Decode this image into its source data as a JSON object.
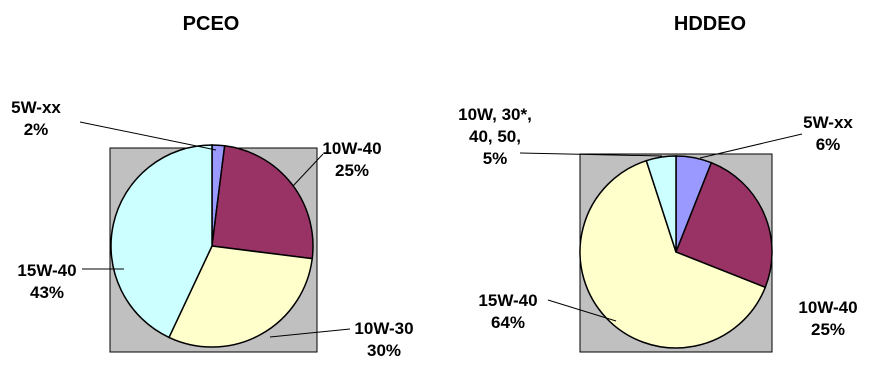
{
  "colors": {
    "frame": "#c0c0c0",
    "outline": "#000000"
  },
  "chart_data": [
    {
      "type": "pie",
      "title": "PCEO",
      "slices": [
        {
          "name": "5W-xx",
          "value": 2,
          "label_lines": [
            "5W-xx",
            "2%"
          ],
          "color": "#9999ff"
        },
        {
          "name": "10W-40",
          "value": 25,
          "label_lines": [
            "10W-40",
            "25%"
          ],
          "color": "#993366"
        },
        {
          "name": "10W-30",
          "value": 30,
          "label_lines": [
            "10W-30",
            "30%"
          ],
          "color": "#ffffcc"
        },
        {
          "name": "15W-40",
          "value": 43,
          "label_lines": [
            "15W-40",
            "43%"
          ],
          "color": "#ccffff"
        }
      ]
    },
    {
      "type": "pie",
      "title": "HDDEO",
      "slices": [
        {
          "name": "5W-xx",
          "value": 6,
          "label_lines": [
            "5W-xx",
            "6%"
          ],
          "color": "#9999ff"
        },
        {
          "name": "10W-40",
          "value": 25,
          "label_lines": [
            "10W-40",
            "25%"
          ],
          "color": "#993366"
        },
        {
          "name": "15W-40",
          "value": 64,
          "label_lines": [
            "15W-40",
            "64%"
          ],
          "color": "#ffffcc"
        },
        {
          "name": "10W, 30*, 40, 50,",
          "value": 5,
          "label_lines": [
            "10W, 30*,",
            "40, 50,",
            "5%"
          ],
          "color": "#ccffff"
        }
      ]
    }
  ]
}
